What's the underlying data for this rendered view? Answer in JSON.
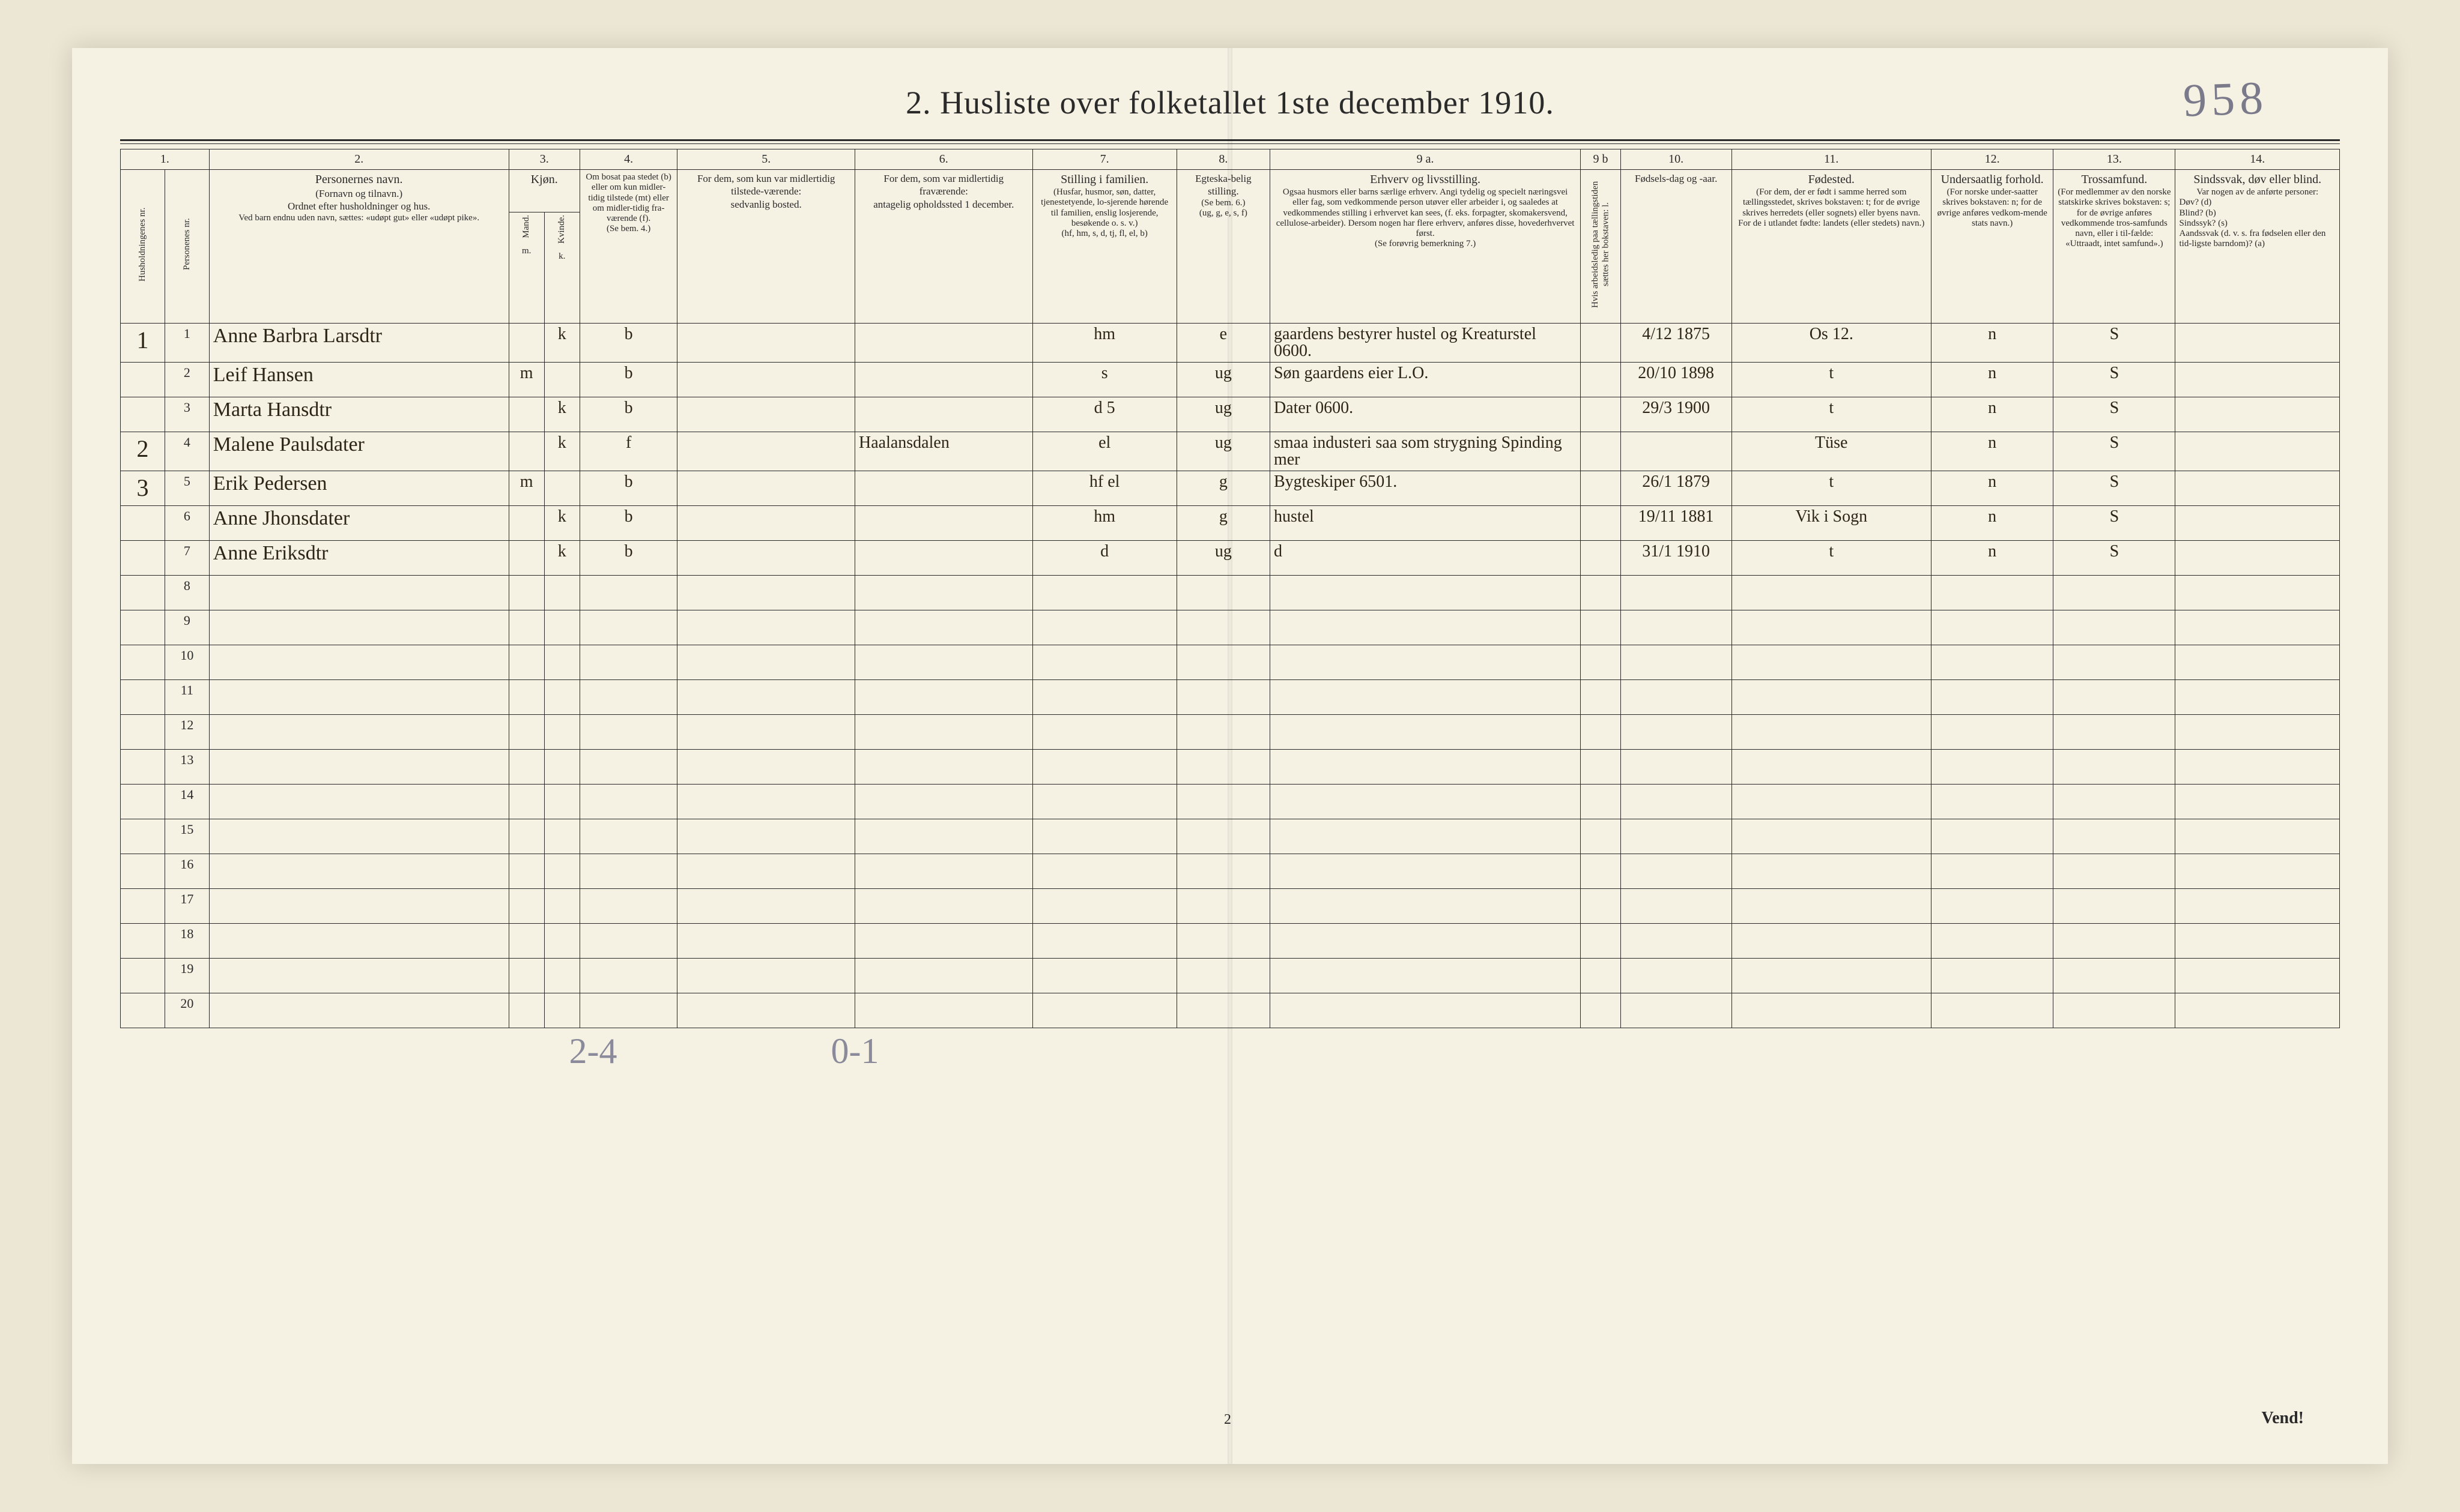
{
  "document": {
    "title": "2.  Husliste over folketallet 1ste december 1910.",
    "pencil_topright": "958",
    "footer": "Vend!",
    "page_number": "2",
    "pencil_bottom_left": "2-4",
    "pencil_bottom_mid": "0-1"
  },
  "columns": {
    "nums": [
      "1.",
      "2.",
      "3.",
      "4.",
      "5.",
      "6.",
      "7.",
      "8.",
      "9 a.",
      "9 b",
      "10.",
      "11.",
      "12.",
      "13.",
      "14."
    ],
    "h1": "Husholdningenes nr.",
    "h1b": "Personenes nr.",
    "h2_title": "Personernes navn.",
    "h2_sub1": "(Fornavn og tilnavn.)",
    "h2_sub2": "Ordnet efter husholdninger og hus.",
    "h2_sub3": "Ved barn endnu uden navn, sættes: «udøpt gut» eller «udøpt pike».",
    "h3_title": "Kjøn.",
    "h3_m": "Mand.",
    "h3_k": "Kvinde.",
    "h3_mk": "m.  k.",
    "h4_title": "Om bosat paa stedet (b) eller om kun midler-tidig tilstede (mt) eller om midler-tidig fra-værende (f).",
    "h4_sub": "(Se bem. 4.)",
    "h5_title": "For dem, som kun var midlertidig tilstede-værende:",
    "h5_sub": "sedvanlig bosted.",
    "h6_title": "For dem, som var midlertidig fraværende:",
    "h6_sub": "antagelig opholdssted 1 december.",
    "h7_title": "Stilling i familien.",
    "h7_sub": "(Husfar, husmor, søn, datter, tjenestetyende, lo-sjerende hørende til familien, enslig losjerende, besøkende o. s. v.)",
    "h7_sub2": "(hf, hm, s, d, tj, fl, el, b)",
    "h8_title": "Egteska-belig stilling.",
    "h8_sub": "(Se bem. 6.)",
    "h8_sub2": "(ug, g, e, s, f)",
    "h9a_title": "Erhverv og livsstilling.",
    "h9a_sub": "Ogsaa husmors eller barns særlige erhverv. Angi tydelig og specielt næringsvei eller fag, som vedkommende person utøver eller arbeider i, og saaledes at vedkommendes stilling i erhvervet kan sees, (f. eks. forpagter, skomakersvend, cellulose-arbeider). Dersom nogen har flere erhverv, anføres disse, hovederhvervet først.",
    "h9a_sub2": "(Se forøvrig bemerkning 7.)",
    "h9b_title": "Hvis arbeidsledig paa tællingstiden sættes her bokstaven: l.",
    "h10_title": "Fødsels-dag og -aar.",
    "h11_title": "Fødested.",
    "h11_sub": "(For dem, der er født i samme herred som tællingsstedet, skrives bokstaven: t; for de øvrige skrives herredets (eller sognets) eller byens navn. For de i utlandet fødte: landets (eller stedets) navn.)",
    "h12_title": "Undersaatlig forhold.",
    "h12_sub": "(For norske under-saatter skrives bokstaven: n; for de øvrige anføres vedkom-mende stats navn.)",
    "h13_title": "Trossamfund.",
    "h13_sub": "(For medlemmer av den norske statskirke skrives bokstaven: s; for de øvrige anføres vedkommende tros-samfunds navn, eller i til-fælde: «Uttraadt, intet samfund».)",
    "h14_title": "Sindssvak, døv eller blind.",
    "h14_sub": "Var nogen av de anførte personer:",
    "h14_a": "Døv?          (d)",
    "h14_b": "Blind?        (b)",
    "h14_c": "Sindssyk?  (s)",
    "h14_d": "Aandssvak (d. v. s. fra fødselen eller den tid-ligste barndom)?  (a)"
  },
  "rows": [
    {
      "hh": "1",
      "pn": "1",
      "name": "Anne Barbra Larsdtr",
      "sex_k": "k",
      "bosat": "b",
      "c5": "",
      "c6": "",
      "fam": "hm",
      "egte": "e",
      "erhverv": "gaardens bestyrer hustel og Kreaturstel 0600.",
      "c9b": "",
      "dob": "4/12 1875",
      "fsted": "Os 12.",
      "und": "n",
      "tros": "S",
      "c14": ""
    },
    {
      "hh": "",
      "pn": "2",
      "name": "Leif Hansen",
      "sex_m": "m",
      "bosat": "b",
      "c5": "",
      "c6": "",
      "fam": "s",
      "egte": "ug",
      "erhverv": "Søn gaardens eier L.O.",
      "c9b": "",
      "dob": "20/10 1898",
      "fsted": "t",
      "und": "n",
      "tros": "S",
      "c14": ""
    },
    {
      "hh": "",
      "pn": "3",
      "name": "Marta Hansdtr",
      "sex_k": "k",
      "bosat": "b",
      "c5": "",
      "c6": "",
      "fam": "d       5",
      "egte": "ug",
      "erhverv": "Dater   0600.",
      "c9b": "",
      "dob": "29/3 1900",
      "fsted": "t",
      "und": "n",
      "tros": "S",
      "c14": ""
    },
    {
      "hh": "2",
      "pn": "4",
      "name": "Malene Paulsdater",
      "sex_k": "k",
      "bosat": "f",
      "c5": "",
      "c6": "Haalansdalen",
      "fam": "el",
      "egte": "ug",
      "erhverv": "smaa industeri saa som strygning Spinding mer",
      "c9b": "",
      "dob": "",
      "fsted": "Tüse",
      "und": "n",
      "tros": "S",
      "c14": ""
    },
    {
      "hh": "3",
      "pn": "5",
      "name": "Erik Pedersen",
      "sex_m": "m",
      "bosat": "b",
      "c5": "",
      "c6": "",
      "fam": "hf el",
      "egte": "g",
      "erhverv": "Bygteskiper 6501.",
      "c9b": "",
      "dob": "26/1 1879",
      "fsted": "t",
      "und": "n",
      "tros": "S",
      "c14": ""
    },
    {
      "hh": "",
      "pn": "6",
      "name": "Anne Jhonsdater",
      "sex_k": "k",
      "bosat": "b",
      "c5": "",
      "c6": "",
      "fam": "hm",
      "egte": "g",
      "erhverv": "hustel",
      "c9b": "",
      "dob": "19/11 1881",
      "fsted": "Vik i Sogn",
      "und": "n",
      "tros": "S",
      "c14": ""
    },
    {
      "hh": "",
      "pn": "7",
      "name": "Anne Eriksdtr",
      "sex_k": "k",
      "bosat": "b",
      "c5": "",
      "c6": "",
      "fam": "d",
      "egte": "ug",
      "erhverv": "d",
      "c9b": "",
      "dob": "31/1 1910",
      "fsted": "t",
      "und": "n",
      "tros": "S",
      "c14": ""
    }
  ],
  "empty_rows": [
    "8",
    "9",
    "10",
    "11",
    "12",
    "13",
    "14",
    "15",
    "16",
    "17",
    "18",
    "19",
    "20"
  ],
  "col_widths_pct": [
    2.0,
    2.0,
    13.5,
    1.6,
    1.6,
    4.4,
    8.0,
    8.0,
    6.5,
    4.2,
    14.0,
    1.8,
    5.0,
    9.0,
    5.5,
    5.5,
    7.4
  ]
}
